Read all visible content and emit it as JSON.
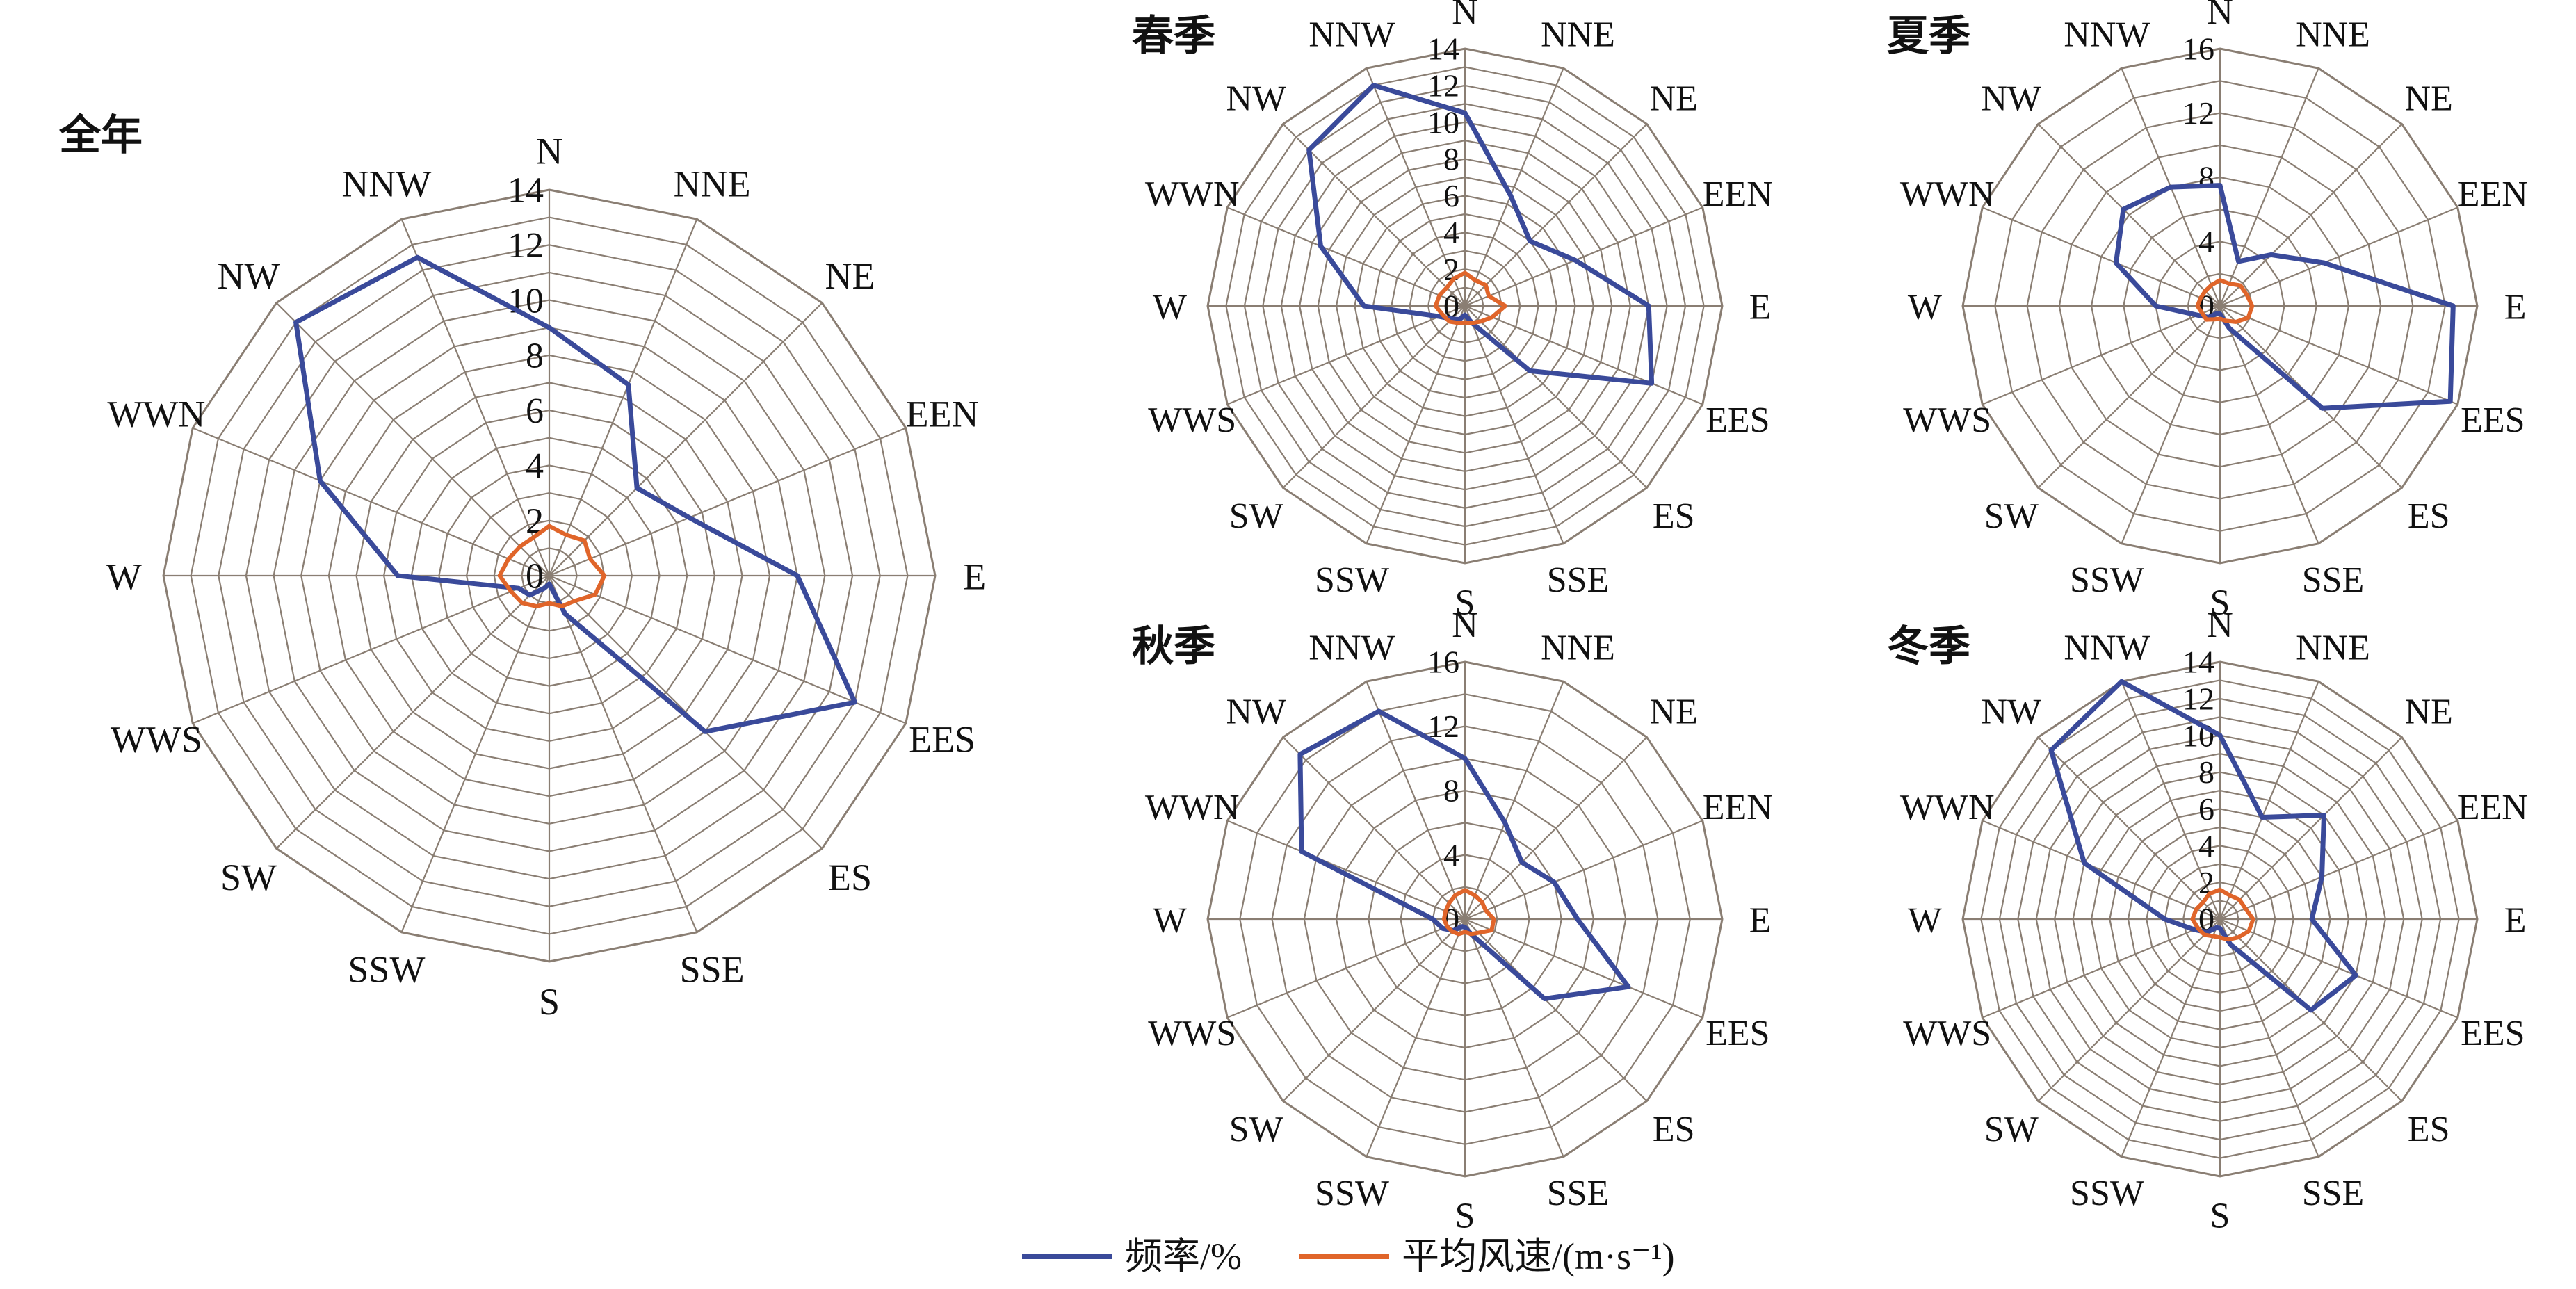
{
  "figure": {
    "legend": {
      "items": [
        {
          "label": "频率/%",
          "color": "#3a4a9a"
        },
        {
          "label": "平均风速/(m·s⁻¹)",
          "color": "#e0652a"
        }
      ]
    }
  },
  "chart_data": [
    {
      "type": "radar",
      "title": "全年",
      "directions": [
        "N",
        "NNE",
        "NE",
        "EEN",
        "E",
        "EES",
        "ES",
        "SSE",
        "S",
        "SSW",
        "SW",
        "WWS",
        "W",
        "WWN",
        "NW",
        "NNW"
      ],
      "rmax": 14,
      "ticks": [
        0,
        2,
        4,
        6,
        8,
        10,
        12,
        14
      ],
      "tick_labels": [
        "0",
        "2",
        "4",
        "6",
        "8",
        "10",
        "12",
        "14"
      ],
      "grid": true,
      "series": [
        {
          "name": "频率/%",
          "color": "#3a4a9a",
          "values": [
            9,
            7.5,
            4.5,
            5.5,
            9,
            12,
            8,
            1.5,
            0.3,
            0.5,
            1,
            1.2,
            5.5,
            9,
            13,
            12.5
          ]
        },
        {
          "name": "平均风速/(m·s⁻¹)",
          "color": "#e0652a",
          "values": [
            1.8,
            1.6,
            1.8,
            1.6,
            2.0,
            1.8,
            1.3,
            1.2,
            1.0,
            1.2,
            1.4,
            1.5,
            1.8,
            1.6,
            1.5,
            1.5
          ]
        }
      ]
    },
    {
      "type": "radar",
      "title": "春季",
      "directions": [
        "N",
        "NNE",
        "NE",
        "EEN",
        "E",
        "EES",
        "ES",
        "SSE",
        "S",
        "SSW",
        "SW",
        "WWS",
        "W",
        "WWN",
        "NW",
        "NNW"
      ],
      "rmax": 14,
      "ticks": [
        0,
        2,
        4,
        6,
        8,
        10,
        12,
        14
      ],
      "tick_labels": [
        "0",
        "2",
        "4",
        "6",
        "8",
        "10",
        "12",
        "14"
      ],
      "grid": true,
      "series": [
        {
          "name": "频率/%",
          "color": "#3a4a9a",
          "values": [
            10.5,
            6.5,
            5,
            6.5,
            10,
            11,
            5,
            1,
            0.5,
            0.8,
            1,
            1.5,
            5.5,
            8.5,
            12,
            13
          ]
        },
        {
          "name": "平均风速/(m·s⁻¹)",
          "color": "#e0652a",
          "values": [
            1.8,
            1.5,
            1.6,
            1.4,
            2.2,
            1.6,
            1.2,
            1.0,
            0.9,
            1.0,
            1.2,
            1.3,
            1.6,
            1.5,
            1.4,
            1.6
          ]
        }
      ]
    },
    {
      "type": "radar",
      "title": "夏季",
      "directions": [
        "N",
        "NNE",
        "NE",
        "EEN",
        "E",
        "EES",
        "ES",
        "SSE",
        "S",
        "SSW",
        "SW",
        "WWS",
        "W",
        "WWN",
        "NW",
        "NNW"
      ],
      "rmax": 16,
      "ticks": [
        0,
        4,
        8,
        12,
        16
      ],
      "tick_labels": [
        "0",
        "4",
        "8",
        "12",
        "16"
      ],
      "grid": true,
      "series": [
        {
          "name": "频率/%",
          "color": "#3a4a9a",
          "values": [
            7.5,
            3,
            4.5,
            7,
            14.5,
            15.5,
            9,
            1.5,
            0.5,
            0.5,
            1,
            1.5,
            4,
            7,
            8.5,
            8
          ]
        },
        {
          "name": "平均风速/(m·s⁻¹)",
          "color": "#e0652a",
          "values": [
            1.6,
            1.5,
            1.8,
            1.8,
            2.0,
            1.9,
            1.4,
            1.0,
            0.8,
            0.9,
            1.2,
            1.2,
            1.4,
            1.3,
            1.3,
            1.4
          ]
        }
      ]
    },
    {
      "type": "radar",
      "title": "秋季",
      "directions": [
        "N",
        "NNE",
        "NE",
        "EEN",
        "E",
        "EES",
        "ES",
        "SSE",
        "S",
        "SSW",
        "SW",
        "WWS",
        "W",
        "WWN",
        "NW",
        "NNW"
      ],
      "rmax": 16,
      "ticks": [
        0,
        4,
        8,
        12,
        16
      ],
      "tick_labels": [
        "0",
        "4",
        "8",
        "12",
        "16"
      ],
      "grid": true,
      "series": [
        {
          "name": "频率/%",
          "color": "#3a4a9a",
          "values": [
            10,
            6.5,
            5,
            6,
            7,
            11,
            7,
            1,
            0.5,
            0.5,
            1,
            1.5,
            2,
            11,
            14.5,
            14
          ]
        },
        {
          "name": "平均风速/(m·s⁻¹)",
          "color": "#e0652a",
          "values": [
            1.8,
            1.6,
            1.5,
            1.4,
            1.8,
            1.8,
            1.2,
            1.0,
            0.8,
            1.0,
            1.1,
            1.2,
            1.3,
            1.3,
            1.4,
            1.6
          ]
        }
      ]
    },
    {
      "type": "radar",
      "title": "冬季",
      "directions": [
        "N",
        "NNE",
        "NE",
        "EEN",
        "E",
        "EES",
        "ES",
        "SSE",
        "S",
        "SSW",
        "SW",
        "WWS",
        "W",
        "WWN",
        "NW",
        "NNW"
      ],
      "rmax": 14,
      "ticks": [
        0,
        2,
        4,
        6,
        8,
        10,
        12,
        14
      ],
      "tick_labels": [
        "0",
        "2",
        "4",
        "6",
        "8",
        "10",
        "12",
        "14"
      ],
      "grid": true,
      "series": [
        {
          "name": "频率/%",
          "color": "#3a4a9a",
          "values": [
            10,
            6,
            8,
            6,
            5,
            8,
            7,
            1.5,
            0.5,
            0.5,
            1,
            1.5,
            3,
            8,
            13,
            14
          ]
        },
        {
          "name": "平均风速/(m·s⁻¹)",
          "color": "#e0652a",
          "values": [
            1.6,
            1.4,
            1.5,
            1.5,
            1.8,
            1.7,
            1.4,
            1.2,
            1.0,
            1.0,
            1.2,
            1.3,
            1.5,
            1.4,
            1.3,
            1.5
          ]
        }
      ]
    }
  ]
}
